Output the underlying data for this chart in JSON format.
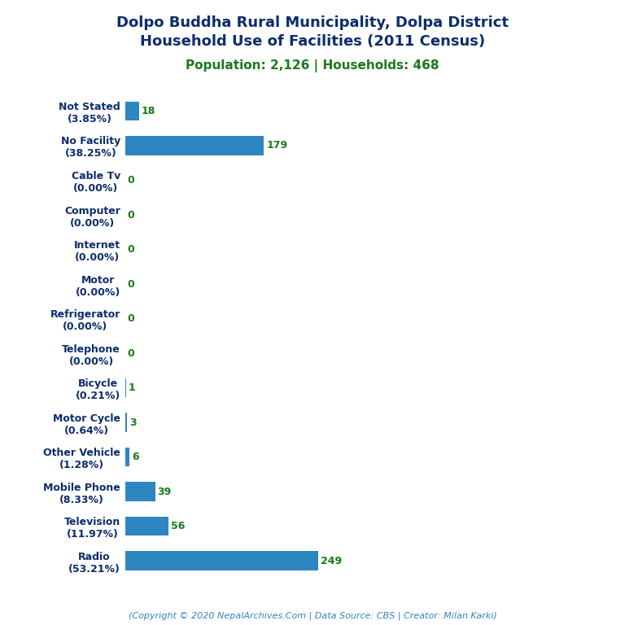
{
  "title_line1": "Dolpo Buddha Rural Municipality, Dolpa District",
  "title_line2": "Household Use of Facilities (2011 Census)",
  "subtitle": "Population: 2,126 | Households: 468",
  "footer": "(Copyright © 2020 NepalArchives.Com | Data Source: CBS | Creator: Milan Karki)",
  "categories": [
    "Not Stated\n(3.85%)",
    "No Facility\n(38.25%)",
    "Cable Tv\n(0.00%)",
    "Computer\n(0.00%)",
    "Internet\n(0.00%)",
    "Motor\n(0.00%)",
    "Refrigerator\n(0.00%)",
    "Telephone\n(0.00%)",
    "Bicycle\n(0.21%)",
    "Motor Cycle\n(0.64%)",
    "Other Vehicle\n(1.28%)",
    "Mobile Phone\n(8.33%)",
    "Television\n(11.97%)",
    "Radio\n(53.21%)"
  ],
  "values": [
    18,
    179,
    0,
    0,
    0,
    0,
    0,
    0,
    1,
    3,
    6,
    39,
    56,
    249
  ],
  "bar_color": "#2e86c1",
  "title_color": "#0d2d6b",
  "subtitle_color": "#1a7a1a",
  "footer_color": "#2e86c1",
  "value_color": "#1a7a1a",
  "background_color": "#ffffff",
  "xlim": [
    0,
    620
  ],
  "title_fontsize": 13,
  "subtitle_fontsize": 11,
  "bar_label_fontsize": 9,
  "ytick_fontsize": 9,
  "footer_fontsize": 8,
  "bar_height": 0.55
}
